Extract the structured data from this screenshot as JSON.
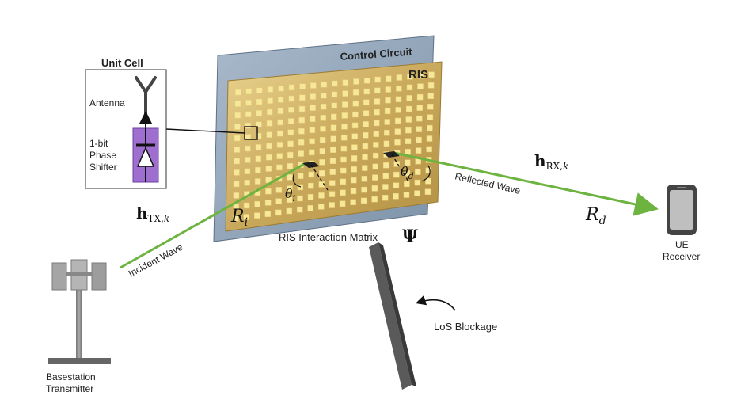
{
  "labels": {
    "unit_cell": "Unit Cell",
    "antenna": "Antenna",
    "phase_shifter": [
      "1-bit",
      "Phase",
      "Shifter"
    ],
    "control_circuit": "Control Circuit",
    "ris": "RIS",
    "incident_wave": "Incident Wave",
    "reflected_wave": "Reflected Wave",
    "interaction_matrix": "RIS Interaction Matrix",
    "los_blockage": "LoS Blockage",
    "basestation": [
      "Basestation",
      "Transmitter"
    ],
    "ue": [
      "UE",
      "Receiver"
    ]
  },
  "math": {
    "h_tx": "h",
    "h_tx_sub": "TX,",
    "h_tx_k": "k",
    "h_rx": "h",
    "h_rx_sub": "RX,",
    "h_rx_k": "k",
    "r_i": "R",
    "r_i_sub": "i",
    "r_d": "R",
    "r_d_sub": "d",
    "theta_i": "θ",
    "theta_i_sub": "i",
    "theta_d": "θ",
    "theta_d_sub": "d",
    "psi": "Ψ"
  },
  "colors": {
    "wave": "#6db33f",
    "panel_gold": "#c8a85a",
    "element": "#f7e79a",
    "circuit_blue": "#8fa3b8",
    "diode_purple": "#9f6fd0"
  },
  "icons": [
    "antenna-icon",
    "diode-icon",
    "tower-icon",
    "phone-icon",
    "rotate-arrow-icon"
  ]
}
